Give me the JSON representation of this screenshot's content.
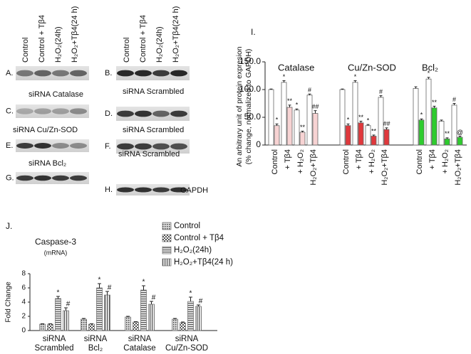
{
  "blots": {
    "columns": [
      "Control",
      "Control + Tβ4",
      "H₂O₂(24h)",
      "H₂O₂+Tβ4(24 h)"
    ],
    "rows": [
      {
        "id": "A.",
        "label": "siRNA  Catalase"
      },
      {
        "id": "B.",
        "label": "siRNA Scrambled"
      },
      {
        "id": "C.",
        "label": "siRNA Cu/Zn-SOD"
      },
      {
        "id": "D.",
        "label": "siRNA Scrambled"
      },
      {
        "id": "E.",
        "label": "siRNA Bcl₂"
      },
      {
        "id": "F.",
        "label": "siRNA Scrambled"
      },
      {
        "id": "G.",
        "label": null
      },
      {
        "id": "H.",
        "label": "GAPDH"
      }
    ]
  },
  "chart_data": [
    {
      "type": "grouped-pair-bar",
      "title": "I.",
      "ylabel": [
        "An arbitrary unit of protein expresion",
        "(% change, normalized  to GAPDH)"
      ],
      "ylim": [
        0,
        150
      ],
      "yticks": [
        0,
        {
          "value": 50,
          "label": "50.0"
        },
        {
          "value": 100,
          "label": "100.0"
        },
        {
          "value": 150,
          "label": "150.0"
        }
      ],
      "categories": [
        "Control",
        "+ Tβ4",
        "+ H₂O₂",
        "H₂O₂+Tβ4"
      ],
      "groups": [
        {
          "name": "Catalase",
          "series": [
            {
              "color": "#ffffff",
              "values": [
                100,
                113,
                63,
                90
              ],
              "errors": [
                1,
                3,
                2,
                2
              ],
              "markers": [
                null,
                "*",
                "*",
                "#"
              ]
            },
            {
              "color": "#f7d3d3",
              "values": [
                35,
                68,
                23,
                57
              ],
              "errors": [
                3,
                4,
                2,
                5
              ],
              "markers": [
                "*",
                "**",
                "**",
                "##"
              ]
            }
          ]
        },
        {
          "name": "Cu/Zn-SOD",
          "series": [
            {
              "color": "#ffffff",
              "values": [
                100,
                113,
                35,
                86
              ],
              "errors": [
                1,
                3,
                2,
                3
              ],
              "markers": [
                null,
                "*",
                "*",
                "#"
              ]
            },
            {
              "color": "#e0383c",
              "values": [
                35,
                40,
                16,
                28
              ],
              "errors": [
                3,
                3,
                2,
                3
              ],
              "markers": [
                "*",
                "**",
                "**",
                "##"
              ]
            }
          ]
        },
        {
          "name": "Bcl₂",
          "series": [
            {
              "color": "#ffffff",
              "values": [
                102,
                119,
                43,
                72
              ],
              "errors": [
                3,
                3,
                2,
                3
              ],
              "markers": [
                null,
                "*",
                null,
                "#"
              ]
            },
            {
              "color": "#2ecc2e",
              "values": [
                45,
                67,
                11,
                14
              ],
              "errors": [
                2,
                3,
                2,
                2
              ],
              "markers": [
                "*",
                "**",
                "**",
                "@"
              ]
            }
          ]
        }
      ]
    },
    {
      "type": "bar",
      "title": "J.",
      "subtitle": [
        "Caspase-3",
        "(mRNA)"
      ],
      "ylabel": "Fold Change",
      "ylim": [
        0,
        8
      ],
      "yticks": [
        0,
        2,
        4,
        6,
        8
      ],
      "categories": [
        [
          "siRNA",
          "Scrambled"
        ],
        [
          "siRNA",
          "Bcl₂"
        ],
        [
          "siRNA",
          "Catalase"
        ],
        [
          "siRNA",
          "Cu/Zn-SOD"
        ]
      ],
      "series": [
        {
          "name": "Control",
          "color": "#555555",
          "pattern": "dots",
          "values": [
            0.9,
            1.6,
            1.9,
            1.6
          ],
          "errors": [
            0.05,
            0.1,
            0.1,
            0.1
          ],
          "markers": [
            null,
            null,
            null,
            null
          ]
        },
        {
          "name": "Control + Tβ4",
          "color": "#555555",
          "pattern": "checker",
          "values": [
            0.9,
            0.9,
            1.2,
            1.1
          ],
          "errors": [
            0.05,
            0.05,
            0.05,
            0.1
          ],
          "markers": [
            null,
            null,
            null,
            null
          ]
        },
        {
          "name": "H₂O₂(24h)",
          "color": "#555555",
          "pattern": "hlines",
          "values": [
            4.5,
            6.0,
            5.7,
            4.1
          ],
          "errors": [
            0.3,
            0.6,
            0.6,
            0.6
          ],
          "markers": [
            "*",
            "*",
            "*",
            "*"
          ]
        },
        {
          "name": "H₂O₂+Tβ4(24 h)",
          "color": "#555555",
          "pattern": "vlines",
          "values": [
            2.8,
            5.0,
            3.7,
            3.4
          ],
          "errors": [
            0.4,
            0.5,
            0.4,
            0.2
          ],
          "markers": [
            "#",
            "#",
            "#",
            "#"
          ]
        }
      ]
    }
  ]
}
